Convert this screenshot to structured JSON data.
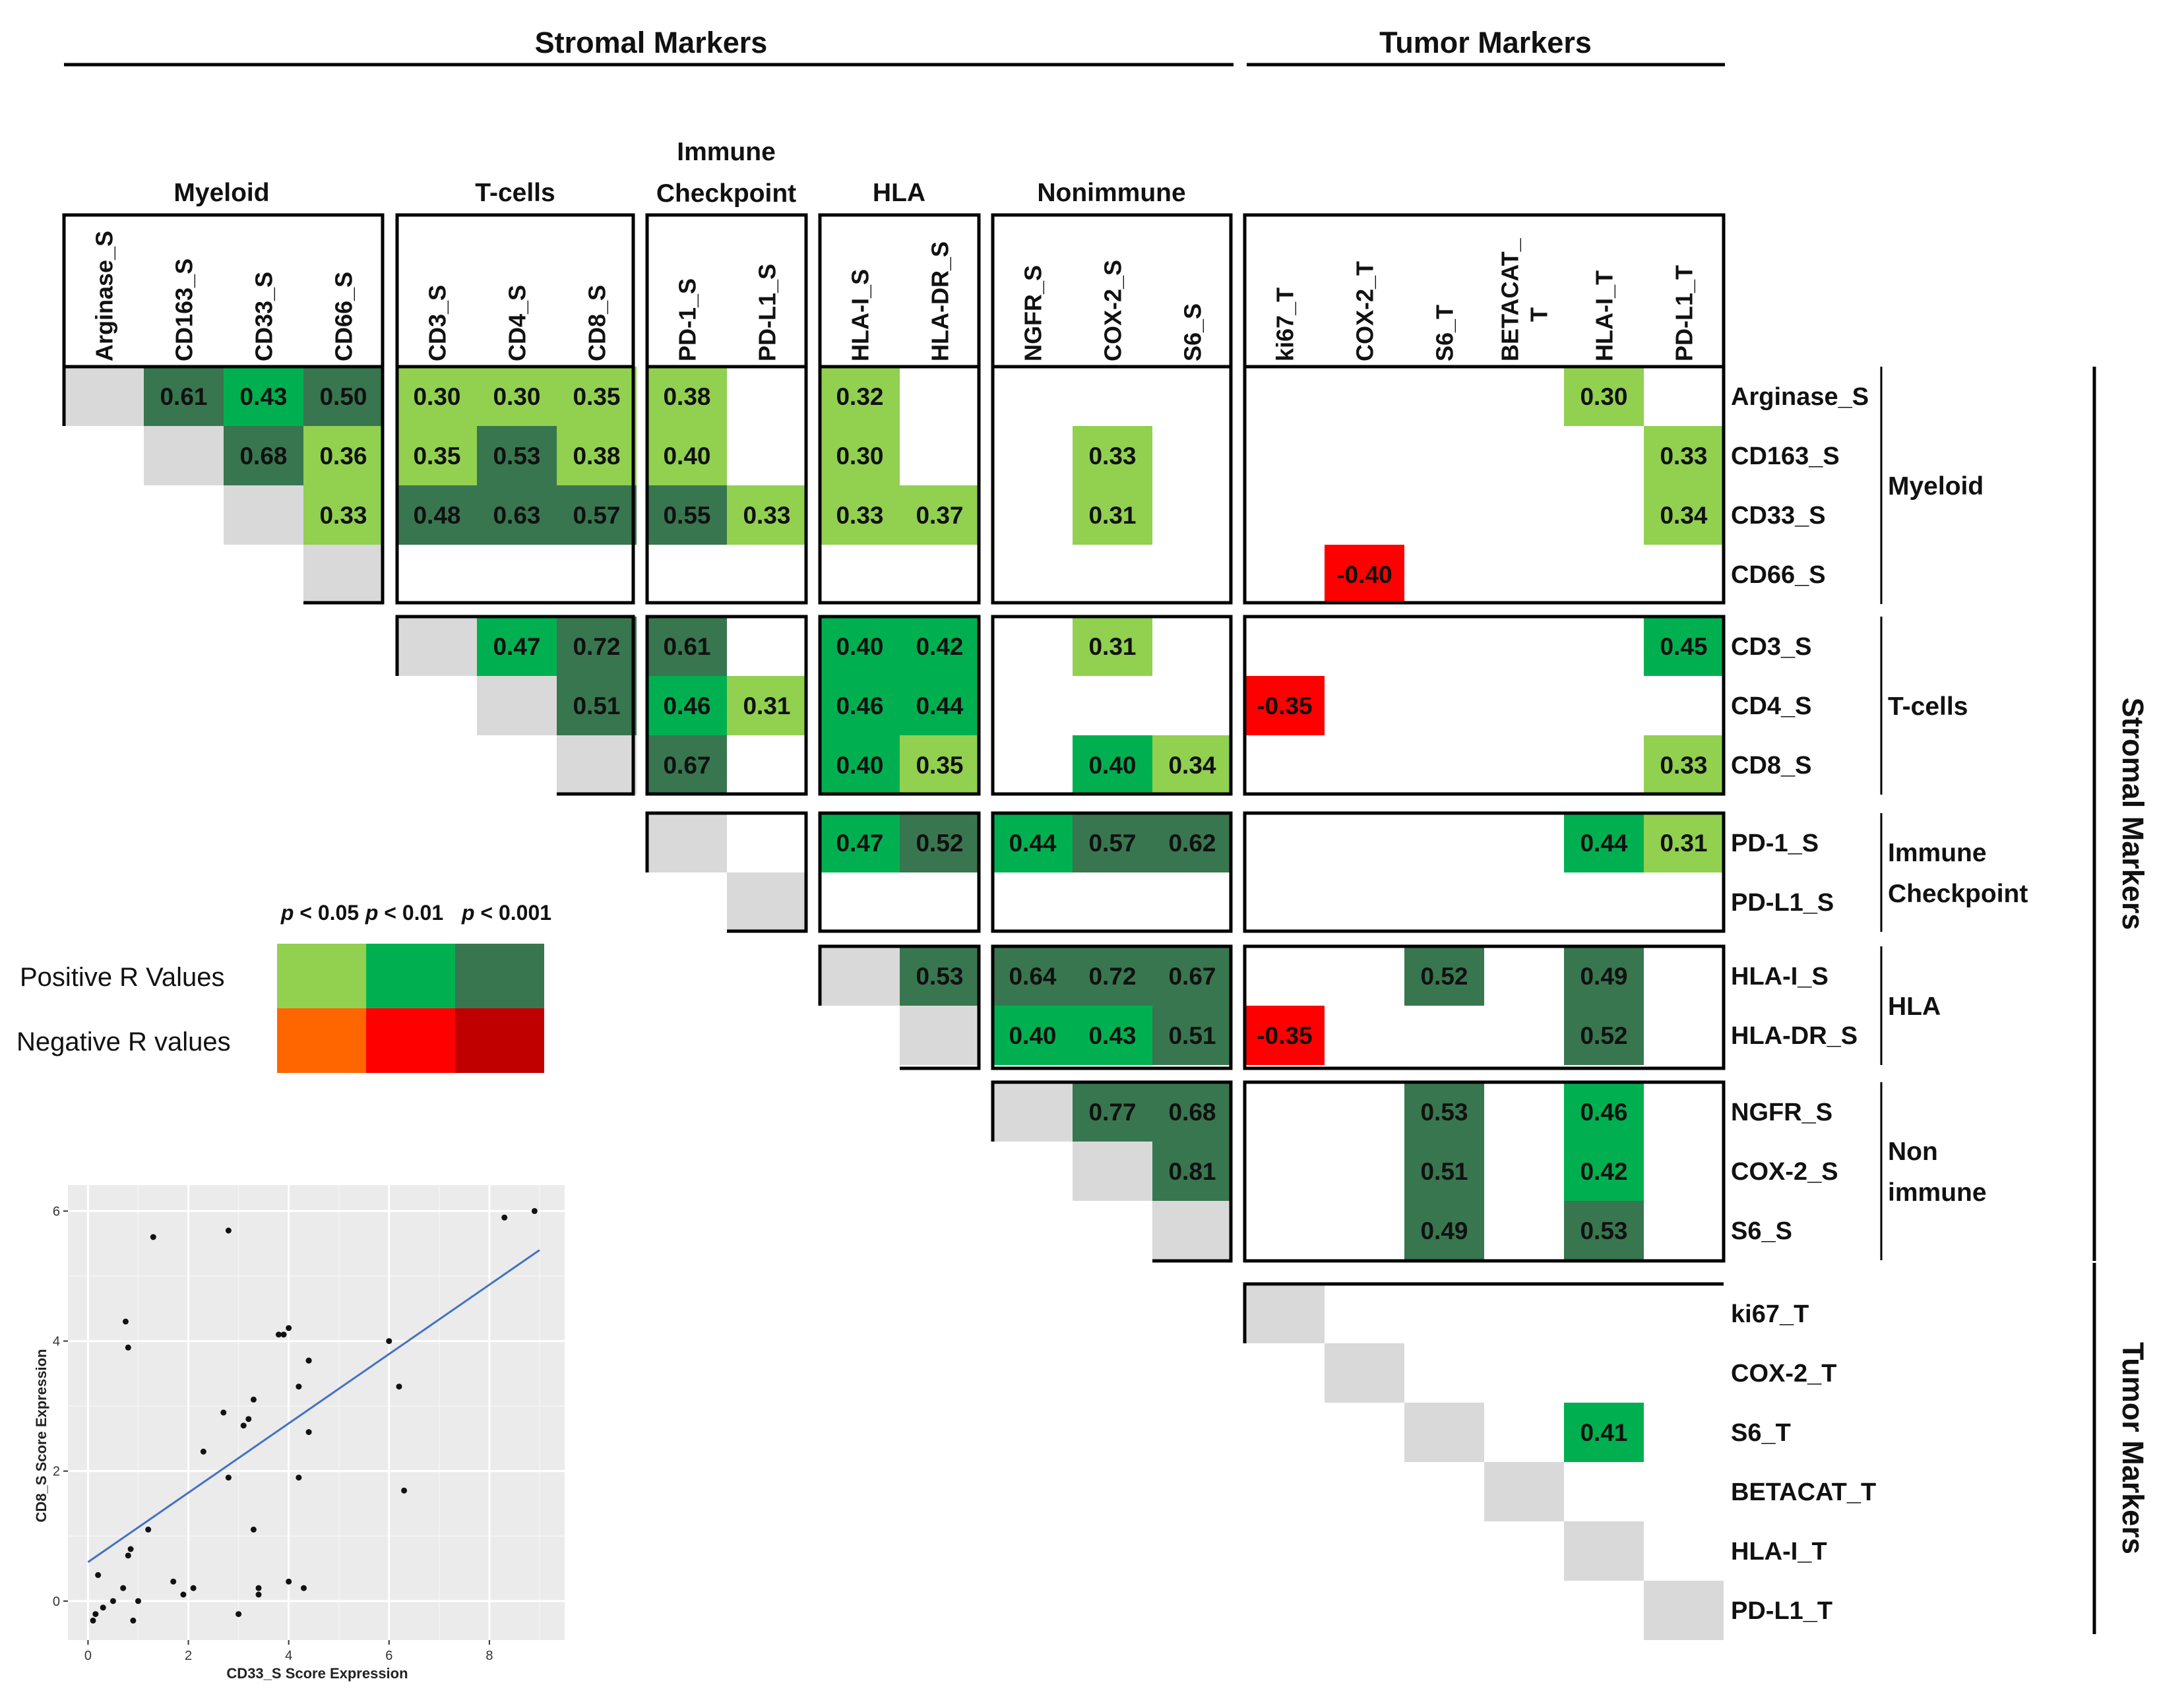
{
  "chart_data": [
    {
      "type": "heatmap",
      "title_stromal": "Stromal Markers",
      "title_tumor": "Tumor Markers",
      "color_scale": {
        "diagonal": "#d9d9d9",
        "pos_p05": "#92d050",
        "pos_p01": "#00b050",
        "pos_p001": "#38764f",
        "neg_p05": "#ff6600",
        "neg_p01": "#ff0000",
        "neg_p001": "#c00000"
      },
      "column_groups": [
        {
          "label": "Myeloid",
          "columns": [
            "Arginase_S",
            "CD163_S",
            "CD33_S",
            "CD66_S"
          ]
        },
        {
          "label": "T-cells",
          "columns": [
            "CD3_S",
            "CD4_S",
            "CD8_S"
          ]
        },
        {
          "label": "Immune Checkpoint",
          "label_lines": [
            "Immune",
            "Checkpoint"
          ],
          "columns": [
            "PD-1_S",
            "PD-L1_S"
          ]
        },
        {
          "label": "HLA",
          "columns": [
            "HLA-I_S",
            "HLA-DR_S"
          ]
        },
        {
          "label": "Nonimmune",
          "columns": [
            "NGFR_S",
            "COX-2_S",
            "S6_S"
          ]
        },
        {
          "label": "",
          "columns": [
            "ki67_T",
            "COX-2_T",
            "S6_T",
            "BETACAT_T",
            "HLA-I_T",
            "PD-L1_T"
          ],
          "column_label_lines": {
            "BETACAT_T": [
              "BETACAT_",
              "T"
            ]
          }
        }
      ],
      "row_groups": [
        {
          "label": "Myeloid",
          "rows": [
            "Arginase_S",
            "CD163_S",
            "CD33_S",
            "CD66_S"
          ]
        },
        {
          "label": "T-cells",
          "rows": [
            "CD3_S",
            "CD4_S",
            "CD8_S"
          ]
        },
        {
          "label": "Immune Checkpoint",
          "label_lines": [
            "Immune",
            "Checkpoint"
          ],
          "rows": [
            "PD-1_S",
            "PD-L1_S"
          ]
        },
        {
          "label": "HLA",
          "rows": [
            "HLA-I_S",
            "HLA-DR_S"
          ]
        },
        {
          "label": "Non immune",
          "label_lines": [
            "Non",
            "immune"
          ],
          "rows": [
            "NGFR_S",
            "COX-2_S",
            "S6_S"
          ]
        },
        {
          "label": "",
          "rows": [
            "ki67_T",
            "COX-2_T",
            "S6_T",
            "BETACAT_T",
            "HLA-I_T",
            "PD-L1_T"
          ]
        }
      ],
      "cells": [
        {
          "row": "Arginase_S",
          "col": "CD163_S",
          "value": 0.61,
          "p": "p001"
        },
        {
          "row": "Arginase_S",
          "col": "CD33_S",
          "value": 0.43,
          "p": "p01"
        },
        {
          "row": "Arginase_S",
          "col": "CD66_S",
          "value": 0.5,
          "p": "p001"
        },
        {
          "row": "Arginase_S",
          "col": "CD3_S",
          "value": 0.3,
          "p": "p05"
        },
        {
          "row": "Arginase_S",
          "col": "CD4_S",
          "value": 0.3,
          "p": "p05"
        },
        {
          "row": "Arginase_S",
          "col": "CD8_S",
          "value": 0.35,
          "p": "p05"
        },
        {
          "row": "Arginase_S",
          "col": "PD-1_S",
          "value": 0.38,
          "p": "p05"
        },
        {
          "row": "Arginase_S",
          "col": "HLA-I_S",
          "value": 0.32,
          "p": "p05"
        },
        {
          "row": "Arginase_S",
          "col": "HLA-I_T",
          "value": 0.3,
          "p": "p05"
        },
        {
          "row": "CD163_S",
          "col": "CD33_S",
          "value": 0.68,
          "p": "p001"
        },
        {
          "row": "CD163_S",
          "col": "CD66_S",
          "value": 0.36,
          "p": "p05"
        },
        {
          "row": "CD163_S",
          "col": "CD3_S",
          "value": 0.35,
          "p": "p05"
        },
        {
          "row": "CD163_S",
          "col": "CD4_S",
          "value": 0.53,
          "p": "p001"
        },
        {
          "row": "CD163_S",
          "col": "CD8_S",
          "value": 0.38,
          "p": "p05"
        },
        {
          "row": "CD163_S",
          "col": "PD-1_S",
          "value": 0.4,
          "p": "p05"
        },
        {
          "row": "CD163_S",
          "col": "HLA-I_S",
          "value": 0.3,
          "p": "p05"
        },
        {
          "row": "CD163_S",
          "col": "COX-2_S",
          "value": 0.33,
          "p": "p05"
        },
        {
          "row": "CD163_S",
          "col": "PD-L1_T",
          "value": 0.33,
          "p": "p05"
        },
        {
          "row": "CD33_S",
          "col": "CD66_S",
          "value": 0.33,
          "p": "p05"
        },
        {
          "row": "CD33_S",
          "col": "CD3_S",
          "value": 0.48,
          "p": "p001"
        },
        {
          "row": "CD33_S",
          "col": "CD4_S",
          "value": 0.63,
          "p": "p001"
        },
        {
          "row": "CD33_S",
          "col": "CD8_S",
          "value": 0.57,
          "p": "p001"
        },
        {
          "row": "CD33_S",
          "col": "PD-1_S",
          "value": 0.55,
          "p": "p001"
        },
        {
          "row": "CD33_S",
          "col": "PD-L1_S",
          "value": 0.33,
          "p": "p05"
        },
        {
          "row": "CD33_S",
          "col": "HLA-I_S",
          "value": 0.33,
          "p": "p05"
        },
        {
          "row": "CD33_S",
          "col": "HLA-DR_S",
          "value": 0.37,
          "p": "p05"
        },
        {
          "row": "CD33_S",
          "col": "COX-2_S",
          "value": 0.31,
          "p": "p05"
        },
        {
          "row": "CD33_S",
          "col": "PD-L1_T",
          "value": 0.34,
          "p": "p05"
        },
        {
          "row": "CD66_S",
          "col": "COX-2_T",
          "value": -0.4,
          "p": "p01"
        },
        {
          "row": "CD3_S",
          "col": "CD4_S",
          "value": 0.47,
          "p": "p01"
        },
        {
          "row": "CD3_S",
          "col": "CD8_S",
          "value": 0.72,
          "p": "p001"
        },
        {
          "row": "CD3_S",
          "col": "PD-1_S",
          "value": 0.61,
          "p": "p001"
        },
        {
          "row": "CD3_S",
          "col": "HLA-I_S",
          "value": 0.4,
          "p": "p01"
        },
        {
          "row": "CD3_S",
          "col": "HLA-DR_S",
          "value": 0.42,
          "p": "p01"
        },
        {
          "row": "CD3_S",
          "col": "COX-2_S",
          "value": 0.31,
          "p": "p05"
        },
        {
          "row": "CD3_S",
          "col": "PD-L1_T",
          "value": 0.45,
          "p": "p01"
        },
        {
          "row": "CD4_S",
          "col": "CD8_S",
          "value": 0.51,
          "p": "p001"
        },
        {
          "row": "CD4_S",
          "col": "PD-1_S",
          "value": 0.46,
          "p": "p01"
        },
        {
          "row": "CD4_S",
          "col": "PD-L1_S",
          "value": 0.31,
          "p": "p05"
        },
        {
          "row": "CD4_S",
          "col": "HLA-I_S",
          "value": 0.46,
          "p": "p01"
        },
        {
          "row": "CD4_S",
          "col": "HLA-DR_S",
          "value": 0.44,
          "p": "p01"
        },
        {
          "row": "CD4_S",
          "col": "ki67_T",
          "value": -0.35,
          "p": "p01"
        },
        {
          "row": "CD8_S",
          "col": "PD-1_S",
          "value": 0.67,
          "p": "p001"
        },
        {
          "row": "CD8_S",
          "col": "HLA-I_S",
          "value": 0.4,
          "p": "p01"
        },
        {
          "row": "CD8_S",
          "col": "HLA-DR_S",
          "value": 0.35,
          "p": "p05"
        },
        {
          "row": "CD8_S",
          "col": "COX-2_S",
          "value": 0.4,
          "p": "p01"
        },
        {
          "row": "CD8_S",
          "col": "S6_S",
          "value": 0.34,
          "p": "p05"
        },
        {
          "row": "CD8_S",
          "col": "PD-L1_T",
          "value": 0.33,
          "p": "p05"
        },
        {
          "row": "PD-1_S",
          "col": "HLA-I_S",
          "value": 0.47,
          "p": "p01"
        },
        {
          "row": "PD-1_S",
          "col": "HLA-DR_S",
          "value": 0.52,
          "p": "p001"
        },
        {
          "row": "PD-1_S",
          "col": "NGFR_S",
          "value": 0.44,
          "p": "p01"
        },
        {
          "row": "PD-1_S",
          "col": "COX-2_S",
          "value": 0.57,
          "p": "p001"
        },
        {
          "row": "PD-1_S",
          "col": "S6_S",
          "value": 0.62,
          "p": "p001"
        },
        {
          "row": "PD-1_S",
          "col": "HLA-I_T",
          "value": 0.44,
          "p": "p01"
        },
        {
          "row": "PD-1_S",
          "col": "PD-L1_T",
          "value": 0.31,
          "p": "p05"
        },
        {
          "row": "HLA-I_S",
          "col": "HLA-DR_S",
          "value": 0.53,
          "p": "p001"
        },
        {
          "row": "HLA-I_S",
          "col": "NGFR_S",
          "value": 0.64,
          "p": "p001"
        },
        {
          "row": "HLA-I_S",
          "col": "COX-2_S",
          "value": 0.72,
          "p": "p001"
        },
        {
          "row": "HLA-I_S",
          "col": "S6_S",
          "value": 0.67,
          "p": "p001"
        },
        {
          "row": "HLA-I_S",
          "col": "S6_T",
          "value": 0.52,
          "p": "p001"
        },
        {
          "row": "HLA-I_S",
          "col": "HLA-I_T",
          "value": 0.49,
          "p": "p001"
        },
        {
          "row": "HLA-DR_S",
          "col": "NGFR_S",
          "value": 0.4,
          "p": "p01"
        },
        {
          "row": "HLA-DR_S",
          "col": "COX-2_S",
          "value": 0.43,
          "p": "p01"
        },
        {
          "row": "HLA-DR_S",
          "col": "S6_S",
          "value": 0.51,
          "p": "p001"
        },
        {
          "row": "HLA-DR_S",
          "col": "ki67_T",
          "value": -0.35,
          "p": "p01"
        },
        {
          "row": "HLA-DR_S",
          "col": "HLA-I_T",
          "value": 0.52,
          "p": "p001"
        },
        {
          "row": "NGFR_S",
          "col": "COX-2_S",
          "value": 0.77,
          "p": "p001"
        },
        {
          "row": "NGFR_S",
          "col": "S6_S",
          "value": 0.68,
          "p": "p001"
        },
        {
          "row": "NGFR_S",
          "col": "S6_T",
          "value": 0.53,
          "p": "p001"
        },
        {
          "row": "NGFR_S",
          "col": "HLA-I_T",
          "value": 0.46,
          "p": "p01"
        },
        {
          "row": "COX-2_S",
          "col": "S6_S",
          "value": 0.81,
          "p": "p001"
        },
        {
          "row": "COX-2_S",
          "col": "S6_T",
          "value": 0.51,
          "p": "p001"
        },
        {
          "row": "COX-2_S",
          "col": "HLA-I_T",
          "value": 0.42,
          "p": "p01"
        },
        {
          "row": "S6_S",
          "col": "S6_T",
          "value": 0.49,
          "p": "p001"
        },
        {
          "row": "S6_S",
          "col": "HLA-I_T",
          "value": 0.53,
          "p": "p001"
        },
        {
          "row": "S6_T",
          "col": "HLA-I_T",
          "value": 0.41,
          "p": "p01"
        }
      ]
    },
    {
      "type": "scatter",
      "xlabel": "CD33_S Score Expression",
      "ylabel": "CD8_S Score Expression",
      "xlim": [
        -0.4,
        9.5
      ],
      "ylim": [
        -0.6,
        6.4
      ],
      "xticks": [
        0,
        2,
        4,
        6,
        8
      ],
      "yticks": [
        0,
        2,
        4,
        6
      ],
      "grid": true,
      "trend_line": {
        "x": [
          0,
          9
        ],
        "y": [
          0.6,
          5.4
        ],
        "color": "#4472c4"
      },
      "points": [
        [
          0.1,
          -0.3
        ],
        [
          0.15,
          -0.2
        ],
        [
          0.2,
          0.4
        ],
        [
          0.3,
          -0.1
        ],
        [
          0.5,
          0.0
        ],
        [
          0.7,
          0.2
        ],
        [
          0.75,
          4.3
        ],
        [
          0.8,
          3.9
        ],
        [
          0.8,
          0.7
        ],
        [
          0.85,
          0.8
        ],
        [
          0.9,
          -0.3
        ],
        [
          1.0,
          0.0
        ],
        [
          1.2,
          1.1
        ],
        [
          1.3,
          5.6
        ],
        [
          1.7,
          0.3
        ],
        [
          1.9,
          0.1
        ],
        [
          2.1,
          0.2
        ],
        [
          2.3,
          2.3
        ],
        [
          2.7,
          2.9
        ],
        [
          2.8,
          5.7
        ],
        [
          2.8,
          1.9
        ],
        [
          3.0,
          -0.2
        ],
        [
          3.1,
          2.7
        ],
        [
          3.2,
          2.8
        ],
        [
          3.3,
          3.1
        ],
        [
          3.3,
          1.1
        ],
        [
          3.4,
          0.2
        ],
        [
          3.4,
          0.1
        ],
        [
          3.8,
          4.1
        ],
        [
          3.9,
          4.1
        ],
        [
          4.0,
          4.2
        ],
        [
          4.0,
          0.3
        ],
        [
          4.2,
          1.9
        ],
        [
          4.2,
          3.3
        ],
        [
          4.3,
          0.2
        ],
        [
          4.4,
          2.6
        ],
        [
          4.4,
          3.7
        ],
        [
          4.4,
          3.7
        ],
        [
          6.0,
          4.0
        ],
        [
          6.2,
          3.3
        ],
        [
          6.3,
          1.7
        ],
        [
          8.3,
          5.9
        ],
        [
          8.9,
          6.0
        ]
      ]
    }
  ],
  "legend": {
    "p_labels": [
      "p < 0.05",
      "p < 0.01",
      "p < 0.001"
    ],
    "row_labels": [
      "Positive R Values",
      "Negative R values"
    ],
    "p_parts": [
      {
        "p": "p",
        "rest": " < 0.05"
      },
      {
        "p": "p",
        "rest": " < 0.01"
      },
      {
        "p": "p",
        "rest": " < 0.001"
      }
    ]
  }
}
